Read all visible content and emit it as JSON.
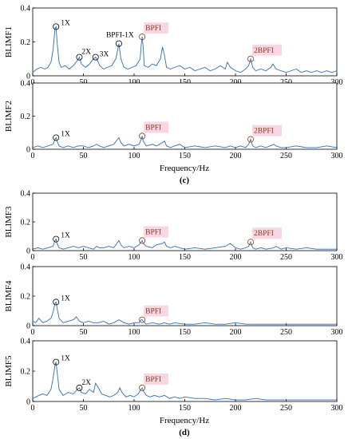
{
  "colors": {
    "line": "#2f6fb5",
    "axis": "#000000",
    "marker": "#000000",
    "annotation_text": "#8b3a1a",
    "annotation_bg": "#f9d6e4"
  },
  "figure": {
    "caption_c": "(c)",
    "caption_d": "(d)"
  },
  "chart_data": [
    {
      "type": "line",
      "ylabel": "BLIMF1",
      "xlim": [
        0,
        300
      ],
      "ylim": [
        0,
        0.4
      ],
      "xticks": [
        0,
        50,
        100,
        150,
        200,
        250,
        300
      ],
      "yticks": [
        0,
        0.2,
        0.4
      ],
      "x": [
        0,
        4,
        8,
        12,
        15,
        18,
        20,
        22,
        23,
        24,
        26,
        28,
        32,
        36,
        40,
        44,
        46,
        48,
        52,
        56,
        60,
        62,
        64,
        66,
        70,
        74,
        78,
        82,
        85,
        87,
        90,
        94,
        98,
        102,
        106,
        107,
        108,
        109,
        110,
        114,
        118,
        122,
        126,
        128,
        130,
        132,
        136,
        140,
        145,
        150,
        155,
        160,
        165,
        170,
        175,
        180,
        185,
        190,
        192,
        195,
        200,
        205,
        210,
        213,
        215,
        217,
        220,
        225,
        230,
        235,
        237,
        240,
        245,
        250,
        255,
        260,
        265,
        270,
        275,
        280,
        285,
        290,
        295,
        300
      ],
      "y": [
        0.02,
        0.04,
        0.05,
        0.04,
        0.05,
        0.08,
        0.15,
        0.28,
        0.29,
        0.2,
        0.08,
        0.05,
        0.06,
        0.04,
        0.06,
        0.09,
        0.11,
        0.07,
        0.05,
        0.07,
        0.1,
        0.11,
        0.09,
        0.06,
        0.04,
        0.05,
        0.06,
        0.1,
        0.19,
        0.1,
        0.05,
        0.04,
        0.05,
        0.06,
        0.1,
        0.18,
        0.23,
        0.17,
        0.06,
        0.05,
        0.07,
        0.06,
        0.1,
        0.17,
        0.12,
        0.05,
        0.04,
        0.05,
        0.06,
        0.04,
        0.05,
        0.03,
        0.04,
        0.05,
        0.03,
        0.04,
        0.06,
        0.04,
        0.08,
        0.05,
        0.03,
        0.02,
        0.04,
        0.06,
        0.1,
        0.05,
        0.03,
        0.04,
        0.03,
        0.05,
        0.07,
        0.04,
        0.03,
        0.02,
        0.03,
        0.04,
        0.02,
        0.03,
        0.02,
        0.03,
        0.02,
        0.03,
        0.02,
        0.03
      ],
      "annotations": [
        {
          "x": 23,
          "y": 0.29,
          "label": "1X",
          "style": "plain"
        },
        {
          "x": 46,
          "y": 0.11,
          "label": "2X",
          "style": "plain"
        },
        {
          "x": 62,
          "y": 0.11,
          "label": "3X",
          "style": "plain"
        },
        {
          "x": 85,
          "y": 0.19,
          "label": "BPFI-1X",
          "style": "plain"
        },
        {
          "x": 108,
          "y": 0.23,
          "label": "BPFI",
          "style": "highlight"
        },
        {
          "x": 215,
          "y": 0.1,
          "label": "2BPFI",
          "style": "highlight"
        }
      ]
    },
    {
      "type": "line",
      "ylabel": "BLIMF2",
      "xlim": [
        0,
        300
      ],
      "ylim": [
        0,
        0.4
      ],
      "xticks": [
        0,
        50,
        100,
        150,
        200,
        250,
        300
      ],
      "yticks": [
        0,
        0.2,
        0.4
      ],
      "x": [
        0,
        5,
        10,
        15,
        20,
        22,
        23,
        24,
        26,
        30,
        35,
        40,
        45,
        50,
        55,
        60,
        63,
        66,
        70,
        75,
        80,
        85,
        87,
        90,
        95,
        100,
        105,
        107,
        108,
        109,
        112,
        118,
        122,
        128,
        130,
        132,
        136,
        140,
        145,
        150,
        160,
        170,
        180,
        190,
        195,
        200,
        205,
        210,
        213,
        215,
        217,
        220,
        225,
        230,
        238,
        240,
        245,
        250,
        260,
        270,
        280,
        290,
        300
      ],
      "y": [
        0.01,
        0.02,
        0.01,
        0.02,
        0.03,
        0.06,
        0.07,
        0.05,
        0.02,
        0.01,
        0.02,
        0.01,
        0.02,
        0.02,
        0.01,
        0.02,
        0.03,
        0.02,
        0.01,
        0.02,
        0.03,
        0.07,
        0.04,
        0.02,
        0.03,
        0.02,
        0.03,
        0.06,
        0.08,
        0.05,
        0.02,
        0.03,
        0.02,
        0.04,
        0.05,
        0.02,
        0.01,
        0.02,
        0.03,
        0.01,
        0.02,
        0.01,
        0.02,
        0.01,
        0.02,
        0.01,
        0.02,
        0.01,
        0.03,
        0.06,
        0.02,
        0.01,
        0.02,
        0.01,
        0.03,
        0.02,
        0.01,
        0.01,
        0.02,
        0.01,
        0.01,
        0.02,
        0.01
      ],
      "annotations": [
        {
          "x": 23,
          "y": 0.07,
          "label": "1X",
          "style": "plain"
        },
        {
          "x": 108,
          "y": 0.08,
          "label": "BPFI",
          "style": "highlight"
        },
        {
          "x": 215,
          "y": 0.06,
          "label": "2BPFI",
          "style": "highlight"
        }
      ]
    },
    {
      "type": "line",
      "ylabel": "BLIMF3",
      "xlim": [
        0,
        300
      ],
      "ylim": [
        0,
        0.4
      ],
      "xticks": [
        0,
        50,
        100,
        150,
        200,
        250,
        300
      ],
      "yticks": [
        0,
        0.2,
        0.4
      ],
      "x": [
        0,
        5,
        10,
        15,
        20,
        22,
        23,
        24,
        26,
        30,
        35,
        40,
        45,
        50,
        55,
        60,
        63,
        66,
        70,
        75,
        80,
        85,
        87,
        90,
        95,
        100,
        105,
        107,
        108,
        109,
        112,
        118,
        122,
        128,
        130,
        132,
        136,
        140,
        145,
        150,
        160,
        170,
        180,
        190,
        195,
        200,
        205,
        210,
        213,
        215,
        217,
        220,
        225,
        230,
        238,
        240,
        245,
        250,
        260,
        270,
        280,
        290,
        300
      ],
      "y": [
        0.01,
        0.02,
        0.01,
        0.02,
        0.03,
        0.07,
        0.08,
        0.05,
        0.02,
        0.01,
        0.02,
        0.03,
        0.02,
        0.03,
        0.02,
        0.01,
        0.03,
        0.02,
        0.02,
        0.03,
        0.02,
        0.07,
        0.04,
        0.02,
        0.03,
        0.02,
        0.04,
        0.06,
        0.07,
        0.05,
        0.03,
        0.02,
        0.04,
        0.05,
        0.06,
        0.03,
        0.02,
        0.03,
        0.02,
        0.01,
        0.02,
        0.01,
        0.02,
        0.03,
        0.05,
        0.02,
        0.01,
        0.02,
        0.03,
        0.06,
        0.02,
        0.01,
        0.02,
        0.01,
        0.02,
        0.03,
        0.01,
        0.02,
        0.01,
        0.02,
        0.01,
        0.01,
        0.01
      ],
      "annotations": [
        {
          "x": 23,
          "y": 0.08,
          "label": "1X",
          "style": "plain"
        },
        {
          "x": 108,
          "y": 0.07,
          "label": "BPFI",
          "style": "highlight"
        },
        {
          "x": 215,
          "y": 0.06,
          "label": "2BPFI",
          "style": "highlight"
        }
      ]
    },
    {
      "type": "line",
      "ylabel": "BLIMF4",
      "xlim": [
        0,
        300
      ],
      "ylim": [
        0,
        0.4
      ],
      "xticks": [
        0,
        50,
        100,
        150,
        200,
        250,
        300
      ],
      "yticks": [
        0,
        0.2,
        0.4
      ],
      "x": [
        0,
        3,
        6,
        10,
        14,
        18,
        20,
        22,
        23,
        24,
        26,
        30,
        35,
        40,
        43,
        46,
        50,
        55,
        60,
        65,
        70,
        75,
        80,
        85,
        90,
        95,
        100,
        105,
        107,
        108,
        109,
        112,
        118,
        125,
        130,
        135,
        140,
        150,
        160,
        170,
        180,
        190,
        200,
        210,
        220,
        230,
        240,
        250,
        260,
        270,
        280,
        290,
        300
      ],
      "y": [
        0.03,
        0.02,
        0.05,
        0.02,
        0.03,
        0.05,
        0.09,
        0.15,
        0.16,
        0.12,
        0.05,
        0.02,
        0.03,
        0.04,
        0.06,
        0.03,
        0.02,
        0.03,
        0.02,
        0.02,
        0.03,
        0.01,
        0.02,
        0.04,
        0.02,
        0.01,
        0.02,
        0.02,
        0.04,
        0.04,
        0.03,
        0.01,
        0.02,
        0.01,
        0.02,
        0.01,
        0.02,
        0.01,
        0.01,
        0.02,
        0.01,
        0.01,
        0.02,
        0.01,
        0.01,
        0.01,
        0.01,
        0.01,
        0.01,
        0.01,
        0.01,
        0.01,
        0.01
      ],
      "annotations": [
        {
          "x": 23,
          "y": 0.16,
          "label": "1X",
          "style": "plain"
        },
        {
          "x": 108,
          "y": 0.04,
          "label": "BPFI",
          "style": "highlight"
        }
      ]
    },
    {
      "type": "line",
      "ylabel": "BLIMF5",
      "xlim": [
        0,
        300
      ],
      "ylim": [
        0,
        0.4
      ],
      "xticks": [
        0,
        50,
        100,
        150,
        200,
        250,
        300
      ],
      "yticks": [
        0,
        0.2,
        0.4
      ],
      "x": [
        0,
        3,
        6,
        10,
        14,
        18,
        20,
        22,
        23,
        24,
        26,
        30,
        35,
        40,
        44,
        46,
        48,
        52,
        56,
        60,
        62,
        64,
        68,
        72,
        76,
        80,
        84,
        86,
        88,
        92,
        96,
        100,
        104,
        107,
        108,
        109,
        112,
        116,
        120,
        125,
        130,
        135,
        140,
        145,
        150,
        160,
        170,
        180,
        190,
        200,
        210,
        220,
        230,
        240,
        250,
        260,
        270,
        280,
        290,
        300
      ],
      "y": [
        0.02,
        0.03,
        0.04,
        0.05,
        0.04,
        0.08,
        0.15,
        0.24,
        0.26,
        0.2,
        0.08,
        0.04,
        0.06,
        0.05,
        0.08,
        0.09,
        0.06,
        0.05,
        0.08,
        0.06,
        0.12,
        0.1,
        0.05,
        0.04,
        0.03,
        0.04,
        0.06,
        0.09,
        0.06,
        0.03,
        0.04,
        0.03,
        0.05,
        0.08,
        0.09,
        0.07,
        0.04,
        0.03,
        0.04,
        0.03,
        0.04,
        0.02,
        0.03,
        0.02,
        0.03,
        0.02,
        0.02,
        0.01,
        0.02,
        0.01,
        0.01,
        0.02,
        0.01,
        0.01,
        0.01,
        0.01,
        0.01,
        0.01,
        0.01,
        0.01
      ],
      "annotations": [
        {
          "x": 23,
          "y": 0.26,
          "label": "1X",
          "style": "plain"
        },
        {
          "x": 46,
          "y": 0.09,
          "label": "2X",
          "style": "plain"
        },
        {
          "x": 108,
          "y": 0.09,
          "label": "BPFI",
          "style": "highlight"
        }
      ]
    }
  ],
  "xlabel_group_c": "Frequency/Hz",
  "xlabel_group_d": "Frequency/Hz"
}
